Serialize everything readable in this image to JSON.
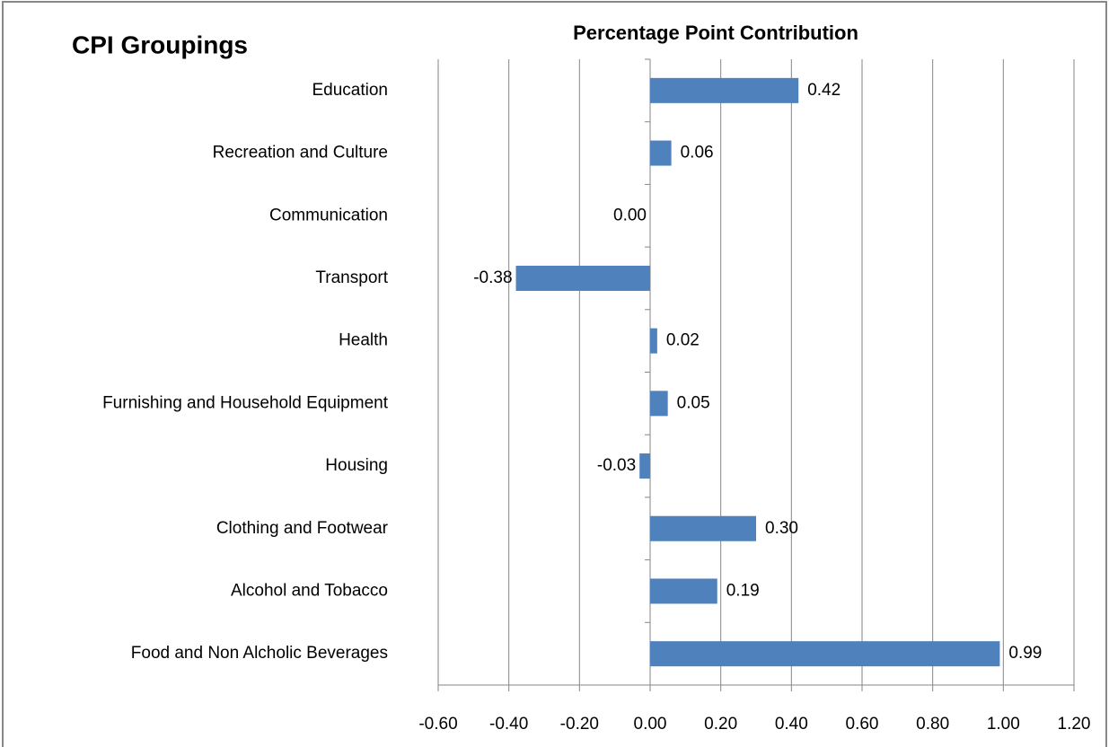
{
  "chart_data": {
    "type": "bar",
    "orientation": "horizontal",
    "title": "CPI Groupings",
    "x_label": "Percentage Point Contribution",
    "categories": [
      "Education",
      "Recreation and Culture",
      "Communication",
      "Transport",
      "Health",
      "Furnishing and Household Equipment",
      "Housing",
      "Clothing and Footwear",
      "Alcohol and Tobacco",
      "Food and Non Alcholic Beverages"
    ],
    "values": [
      0.42,
      0.06,
      0.0,
      -0.38,
      0.02,
      0.05,
      -0.03,
      0.3,
      0.19,
      0.99
    ],
    "value_labels": [
      "0.42",
      "0.06",
      "0.00",
      "-0.38",
      "0.02",
      "0.05",
      "-0.03",
      "0.30",
      "0.19",
      "0.99"
    ],
    "color": "#4f81bd",
    "xlim": [
      -0.6,
      1.2
    ],
    "xticks": [
      {
        "value": -0.6,
        "label": "-0.60"
      },
      {
        "value": -0.4,
        "label": "-0.40"
      },
      {
        "value": -0.2,
        "label": "-0.20"
      },
      {
        "value": 0,
        "label": "0.00"
      },
      {
        "value": 0.2,
        "label": "0.20"
      },
      {
        "value": 0.4,
        "label": "0.40"
      },
      {
        "value": 0.6,
        "label": "0.60"
      },
      {
        "value": 0.8,
        "label": "0.80"
      },
      {
        "value": 1.0,
        "label": "1.00"
      },
      {
        "value": 1.2,
        "label": "1.20"
      }
    ],
    "grid": true
  }
}
